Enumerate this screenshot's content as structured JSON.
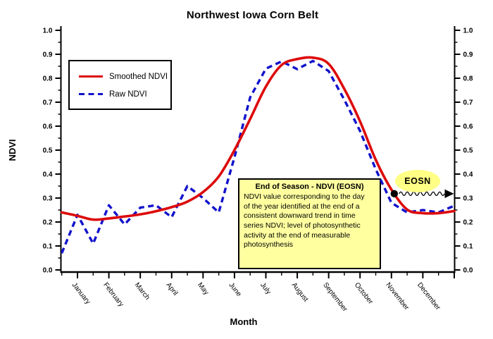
{
  "title": "Northwest Iowa Corn Belt",
  "axes": {
    "y_label": "NDVI",
    "x_label": "Month",
    "y_ticks": [
      "0.0",
      "0.1",
      "0.2",
      "0.3",
      "0.4",
      "0.5",
      "0.6",
      "0.7",
      "0.8",
      "0.9",
      "1.0"
    ],
    "months": [
      "January",
      "February",
      "March",
      "April",
      "May",
      "June",
      "July",
      "August",
      "September",
      "October",
      "November",
      "December"
    ]
  },
  "legend": {
    "items": [
      {
        "label": "Smoothed NDVI",
        "color": "#dd0a0a",
        "style": "solid"
      },
      {
        "label": "Raw NDVI",
        "color": "#1212cc",
        "style": "dashed"
      }
    ]
  },
  "annotation_box": {
    "title": "End of Season - NDVI (EOSN)",
    "body_lines": [
      "NDVI value corresponding to the day",
      "of the year identified at the end of a",
      "consistent downward trend in time",
      "series NDVI; level of photosynthetic",
      "activity at the end of measurable",
      "photosynthesis"
    ],
    "bg_color": "#ffffa0"
  },
  "chart_data": {
    "type": "line",
    "title": "Northwest Iowa Corn Belt",
    "xlabel": "Month",
    "ylabel": "NDVI",
    "ylim": [
      0.0,
      1.0
    ],
    "y_tick_step": 0.1,
    "y_minor_tick_step": 0.05,
    "grid": false,
    "legend_position": "upper-left-inside",
    "x_categories": [
      "January",
      "February",
      "March",
      "April",
      "May",
      "June",
      "July",
      "August",
      "September",
      "October",
      "November",
      "December"
    ],
    "sampling": "biweekly (x in month units, 0 = January tick)",
    "x_start": -0.5,
    "x_step": 0.5,
    "series": [
      {
        "name": "Smoothed NDVI",
        "color": "#dd0a0a",
        "line_style": "solid",
        "values": [
          0.24,
          0.226,
          0.21,
          0.215,
          0.223,
          0.232,
          0.245,
          0.262,
          0.285,
          0.325,
          0.39,
          0.5,
          0.63,
          0.765,
          0.855,
          0.88,
          0.886,
          0.86,
          0.755,
          0.62,
          0.46,
          0.335,
          0.252,
          0.237,
          0.237,
          0.246
        ]
      },
      {
        "name": "Raw NDVI",
        "color": "#1212cc",
        "line_style": "dashed",
        "values": [
          0.07,
          0.23,
          0.11,
          0.27,
          0.19,
          0.26,
          0.27,
          0.22,
          0.35,
          0.3,
          0.24,
          0.47,
          0.72,
          0.84,
          0.87,
          0.838,
          0.872,
          0.83,
          0.71,
          0.58,
          0.42,
          0.28,
          0.24,
          0.25,
          0.24,
          0.268
        ]
      }
    ],
    "annotations": {
      "eosn_label": "EOSN",
      "eosn_point": {
        "x_month": 10.09,
        "value": 0.318
      },
      "eosn_arrow": "wavy arrow from point on smoothed curve to right axis at NDVI 0.318"
    }
  }
}
